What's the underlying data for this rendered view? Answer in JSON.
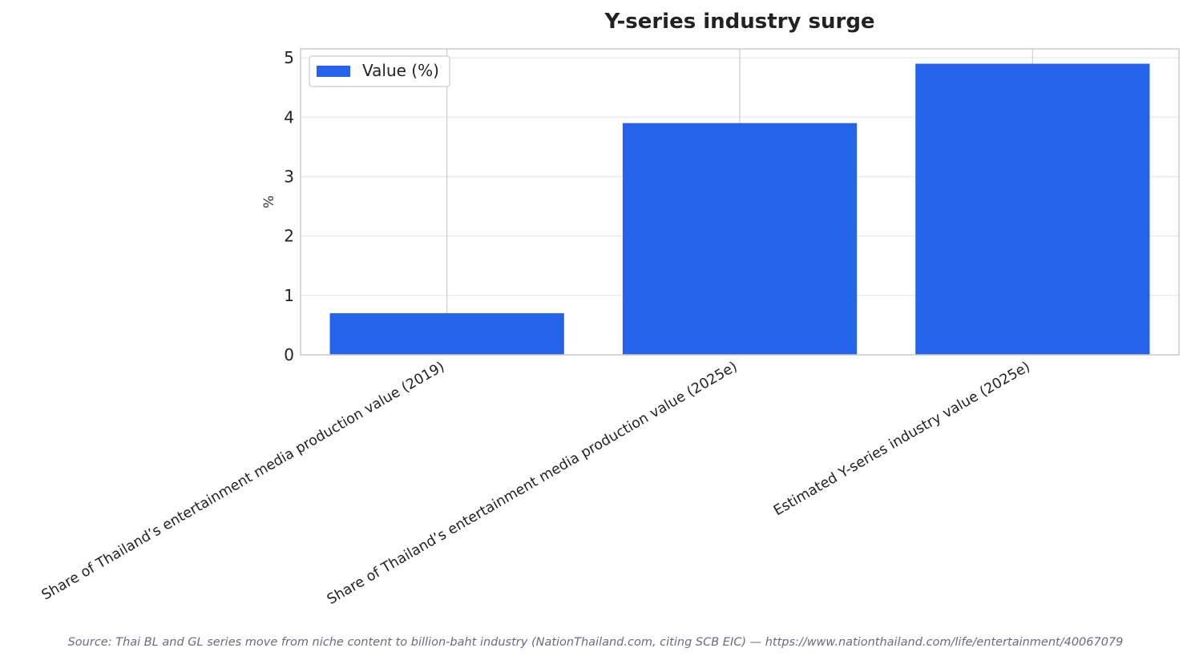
{
  "chart_data": {
    "type": "bar",
    "title": "Y-series industry surge",
    "xlabel": "",
    "ylabel": "%",
    "categories": [
      "Share of Thailand’s entertainment media production value (2019)",
      "Share of Thailand’s entertainment media production value (2025e)",
      "Estimated Y-series industry value (2025e)"
    ],
    "series": [
      {
        "name": "Value (%)",
        "values": [
          0.7,
          3.9,
          4.9
        ]
      }
    ],
    "ylim": [
      0,
      5.15
    ],
    "yticks": [
      "0",
      "1",
      "2",
      "3",
      "4",
      "5"
    ],
    "grid": true,
    "legend_position": "top-left",
    "bar_color": "#2563eb"
  },
  "source": "Source: Thai BL and GL series move from niche content to billion-baht industry (NationThailand.com, citing SCB EIC) — https://www.nationthailand.com/life/entertainment/40067079"
}
